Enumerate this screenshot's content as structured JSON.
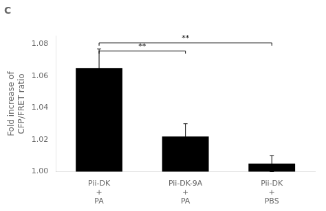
{
  "chart_data": {
    "type": "bar",
    "title": "C",
    "categories": [
      "Pii-DK\n+\nPA",
      "Pii-DK-9A\n+\nPA",
      "Pii-DK\n+\nPBS"
    ],
    "values": [
      1.065,
      1.022,
      1.005
    ],
    "errors": [
      0.012,
      0.008,
      0.005
    ],
    "color": "#000000",
    "ylabel": "Fold increase of\nCFP/FRET ratio",
    "ylim": [
      1.0,
      1.085
    ],
    "yticks": [
      {
        "value": 1.0,
        "label": "1.00"
      },
      1.02,
      1.04,
      1.06,
      1.08
    ],
    "grid": false,
    "annotations": [
      {
        "text": "**",
        "from": "Pii-DK\n+\nPA",
        "to": "Pii-DK-9A\n+\nPA",
        "y": 1.074
      },
      {
        "text": "**",
        "from": "Pii-DK\n+\nPA",
        "to": "Pii-DK\n+\nPBS",
        "y": 1.079
      }
    ]
  }
}
